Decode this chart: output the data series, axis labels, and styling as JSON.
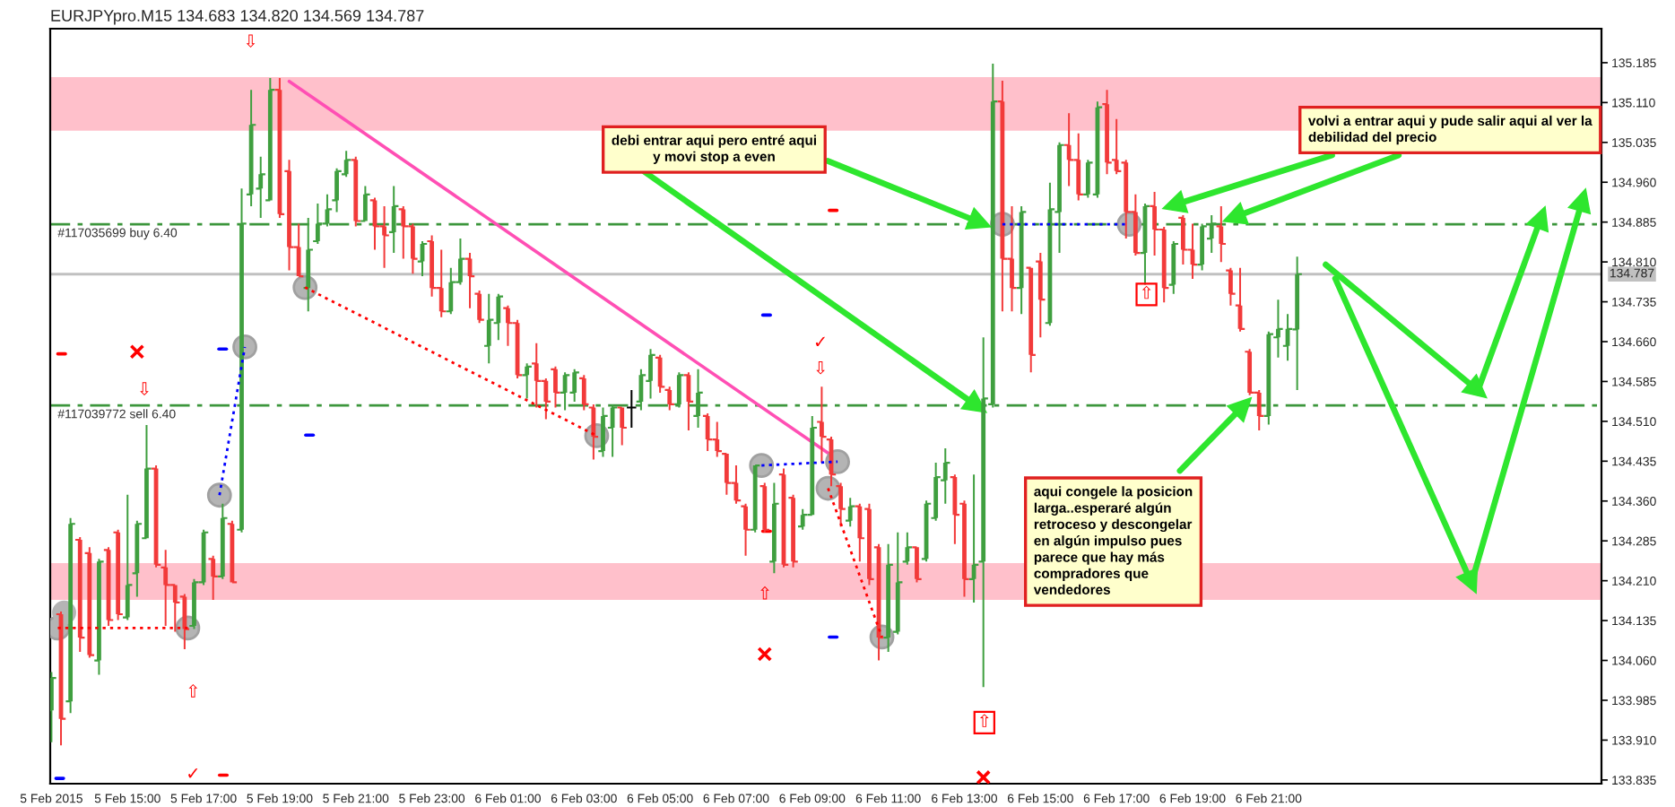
{
  "chart_data": {
    "type": "candlestick",
    "title": "EURJPYpro.M15 134.683 134.820 134.569 134.787",
    "x": [
      "2015-02-05T13:00",
      "2015-02-05T13:15",
      "2015-02-05T13:30",
      "2015-02-05T13:45",
      "2015-02-05T14:00",
      "2015-02-05T14:15",
      "2015-02-05T14:30",
      "2015-02-05T14:45",
      "2015-02-05T15:00",
      "2015-02-05T15:15",
      "2015-02-05T15:30",
      "2015-02-05T15:45",
      "2015-02-05T16:00",
      "2015-02-05T16:15",
      "2015-02-05T16:30",
      "2015-02-05T16:45",
      "2015-02-05T17:00",
      "2015-02-05T17:15",
      "2015-02-05T17:30",
      "2015-02-05T17:45",
      "2015-02-05T18:00",
      "2015-02-05T18:15",
      "2015-02-05T18:30",
      "2015-02-05T18:45",
      "2015-02-05T19:00",
      "2015-02-05T19:15",
      "2015-02-05T19:30",
      "2015-02-05T19:45",
      "2015-02-05T20:00",
      "2015-02-05T20:15",
      "2015-02-05T20:30",
      "2015-02-05T20:45",
      "2015-02-05T21:00",
      "2015-02-05T21:15",
      "2015-02-05T21:30",
      "2015-02-05T21:45",
      "2015-02-05T22:00",
      "2015-02-05T22:15",
      "2015-02-05T22:30",
      "2015-02-05T22:45",
      "2015-02-05T23:00",
      "2015-02-05T23:15",
      "2015-02-05T23:30",
      "2015-02-05T23:45",
      "2015-02-06T00:00",
      "2015-02-06T00:15",
      "2015-02-06T00:30",
      "2015-02-06T00:45",
      "2015-02-06T01:00",
      "2015-02-06T01:15",
      "2015-02-06T01:30",
      "2015-02-06T01:45",
      "2015-02-06T02:00",
      "2015-02-06T02:15",
      "2015-02-06T02:30",
      "2015-02-06T02:45",
      "2015-02-06T03:00",
      "2015-02-06T03:15",
      "2015-02-06T03:30",
      "2015-02-06T03:45",
      "2015-02-06T04:00",
      "2015-02-06T04:15",
      "2015-02-06T04:30",
      "2015-02-06T04:45",
      "2015-02-06T05:00",
      "2015-02-06T05:15",
      "2015-02-06T05:30",
      "2015-02-06T05:45",
      "2015-02-06T06:00",
      "2015-02-06T06:15",
      "2015-02-06T06:30",
      "2015-02-06T06:45",
      "2015-02-06T07:00",
      "2015-02-06T07:15",
      "2015-02-06T07:30",
      "2015-02-06T07:45",
      "2015-02-06T08:00",
      "2015-02-06T08:15",
      "2015-02-06T08:30",
      "2015-02-06T08:45",
      "2015-02-06T09:00",
      "2015-02-06T09:15",
      "2015-02-06T09:30",
      "2015-02-06T09:45",
      "2015-02-06T10:00",
      "2015-02-06T10:15",
      "2015-02-06T10:30",
      "2015-02-06T10:45",
      "2015-02-06T11:00",
      "2015-02-06T11:15",
      "2015-02-06T11:30",
      "2015-02-06T11:45",
      "2015-02-06T12:00",
      "2015-02-06T12:15",
      "2015-02-06T12:30",
      "2015-02-06T12:45",
      "2015-02-06T13:00",
      "2015-02-06T13:15",
      "2015-02-06T13:30",
      "2015-02-06T13:45",
      "2015-02-06T14:00",
      "2015-02-06T14:15",
      "2015-02-06T14:30",
      "2015-02-06T14:45",
      "2015-02-06T15:00",
      "2015-02-06T15:15",
      "2015-02-06T15:30",
      "2015-02-06T15:45",
      "2015-02-06T16:00",
      "2015-02-06T16:15",
      "2015-02-06T16:30",
      "2015-02-06T16:45",
      "2015-02-06T17:00",
      "2015-02-06T17:15",
      "2015-02-06T17:30",
      "2015-02-06T17:45",
      "2015-02-06T18:00",
      "2015-02-06T18:15",
      "2015-02-06T18:30",
      "2015-02-06T18:45",
      "2015-02-06T19:00",
      "2015-02-06T19:15",
      "2015-02-06T19:30",
      "2015-02-06T19:45",
      "2015-02-06T20:00",
      "2015-02-06T20:15",
      "2015-02-06T20:30",
      "2015-02-06T20:45",
      "2015-02-06T21:00",
      "2015-02-06T21:15",
      "2015-02-06T21:30",
      "2015-02-06T21:45"
    ],
    "ohlc": [
      [
        133.966,
        134.038,
        133.906,
        134.027
      ],
      [
        134.147,
        134.152,
        133.9,
        133.95
      ],
      [
        133.983,
        134.328,
        133.961,
        134.317
      ],
      [
        134.287,
        134.292,
        134.076,
        134.103
      ],
      [
        134.262,
        134.273,
        134.065,
        134.07
      ],
      [
        134.06,
        134.251,
        134.033,
        134.246
      ],
      [
        134.268,
        134.273,
        134.125,
        134.136
      ],
      [
        134.301,
        134.306,
        134.136,
        134.147
      ],
      [
        134.141,
        134.372,
        134.136,
        134.202
      ],
      [
        134.224,
        134.323,
        134.18,
        134.317
      ],
      [
        134.29,
        134.503,
        134.29,
        134.421
      ],
      [
        134.421,
        134.427,
        134.235,
        134.24
      ],
      [
        134.235,
        134.268,
        134.125,
        134.202
      ],
      [
        134.202,
        134.202,
        134.114,
        134.169
      ],
      [
        134.18,
        134.185,
        134.081,
        134.119
      ],
      [
        134.125,
        134.213,
        134.119,
        134.207
      ],
      [
        134.207,
        134.306,
        134.202,
        134.301
      ],
      [
        134.251,
        134.257,
        134.174,
        134.218
      ],
      [
        134.218,
        134.355,
        134.213,
        134.328
      ],
      [
        134.317,
        134.323,
        134.207,
        134.207
      ],
      [
        134.306,
        134.948,
        134.301,
        134.882
      ],
      [
        134.937,
        135.134,
        134.915,
        135.068
      ],
      [
        134.948,
        135.008,
        134.893,
        134.975
      ],
      [
        134.926,
        135.156,
        134.926,
        135.134
      ],
      [
        135.134,
        135.156,
        134.893,
        134.9
      ],
      [
        134.981,
        135.002,
        134.794,
        134.838
      ],
      [
        134.838,
        134.882,
        134.783,
        134.783
      ],
      [
        134.761,
        134.893,
        134.717,
        134.833
      ],
      [
        134.849,
        134.92,
        134.844,
        134.882
      ],
      [
        134.882,
        134.937,
        134.877,
        134.909
      ],
      [
        134.926,
        134.986,
        134.904,
        134.981
      ],
      [
        134.975,
        135.019,
        134.97,
        135.002
      ],
      [
        135.002,
        135.008,
        134.877,
        134.887
      ],
      [
        134.887,
        134.953,
        134.887,
        134.937
      ],
      [
        134.926,
        134.931,
        134.833,
        134.877
      ],
      [
        134.877,
        134.915,
        134.799,
        134.86
      ],
      [
        134.866,
        134.953,
        134.827,
        134.915
      ],
      [
        134.909,
        134.915,
        134.816,
        134.877
      ],
      [
        134.877,
        134.882,
        134.788,
        134.816
      ],
      [
        134.811,
        134.849,
        134.783,
        134.844
      ],
      [
        134.849,
        134.86,
        134.745,
        134.761
      ],
      [
        134.761,
        134.833,
        134.706,
        134.717
      ],
      [
        134.717,
        134.799,
        134.712,
        134.772
      ],
      [
        134.772,
        134.854,
        134.767,
        134.816
      ],
      [
        134.816,
        134.827,
        134.723,
        134.783
      ],
      [
        134.75,
        134.756,
        134.695,
        134.701
      ],
      [
        134.652,
        134.75,
        134.619,
        134.701
      ],
      [
        134.695,
        134.75,
        134.663,
        134.745
      ],
      [
        134.723,
        134.728,
        134.652,
        134.695
      ],
      [
        134.695,
        134.701,
        134.591,
        134.597
      ],
      [
        134.597,
        134.619,
        134.553,
        134.613
      ],
      [
        134.619,
        134.657,
        134.536,
        134.586
      ],
      [
        134.586,
        134.591,
        134.514,
        134.547
      ],
      [
        134.608,
        134.613,
        134.536,
        134.564
      ],
      [
        134.564,
        134.602,
        134.531,
        134.597
      ],
      [
        134.564,
        134.608,
        134.547,
        134.602
      ],
      [
        134.591,
        134.597,
        134.531,
        134.542
      ],
      [
        134.536,
        134.542,
        134.438,
        134.481
      ],
      [
        134.454,
        134.536,
        134.443,
        134.52
      ],
      [
        134.498,
        134.542,
        134.443,
        134.536
      ],
      [
        134.536,
        134.536,
        134.465,
        134.498
      ],
      [
        134.536,
        134.569,
        134.498,
        134.536
      ],
      [
        134.547,
        134.608,
        134.531,
        134.597
      ],
      [
        134.586,
        134.646,
        134.553,
        134.635
      ],
      [
        134.63,
        134.635,
        134.564,
        134.575
      ],
      [
        134.569,
        134.575,
        134.531,
        134.542
      ],
      [
        134.542,
        134.602,
        134.536,
        134.597
      ],
      [
        134.597,
        134.602,
        134.493,
        134.547
      ],
      [
        134.52,
        134.608,
        134.498,
        134.564
      ],
      [
        134.52,
        134.525,
        134.454,
        134.476
      ],
      [
        134.476,
        134.509,
        134.443,
        134.454
      ],
      [
        134.449,
        134.449,
        134.372,
        134.394
      ],
      [
        134.394,
        134.427,
        134.355,
        134.361
      ],
      [
        134.35,
        134.355,
        134.257,
        134.306
      ],
      [
        134.306,
        134.427,
        134.301,
        134.427
      ],
      [
        134.388,
        134.394,
        134.301,
        134.306
      ],
      [
        134.246,
        134.394,
        134.224,
        134.355
      ],
      [
        134.41,
        134.421,
        134.235,
        134.24
      ],
      [
        134.366,
        134.372,
        134.235,
        134.246
      ],
      [
        134.312,
        134.345,
        134.306,
        134.334
      ],
      [
        134.334,
        134.52,
        134.334,
        134.498
      ],
      [
        134.509,
        134.575,
        134.432,
        134.481
      ],
      [
        134.476,
        134.481,
        134.388,
        134.41
      ],
      [
        134.388,
        134.394,
        134.312,
        134.345
      ],
      [
        134.323,
        134.366,
        134.312,
        134.35
      ],
      [
        134.35,
        134.355,
        134.246,
        134.29
      ],
      [
        134.345,
        134.355,
        134.202,
        134.213
      ],
      [
        134.273,
        134.279,
        134.06,
        134.103
      ],
      [
        134.103,
        134.279,
        134.076,
        134.24
      ],
      [
        134.114,
        134.301,
        134.109,
        134.207
      ],
      [
        134.246,
        134.301,
        134.24,
        134.273
      ],
      [
        134.273,
        134.273,
        134.207,
        134.213
      ],
      [
        134.251,
        134.361,
        134.246,
        134.355
      ],
      [
        134.328,
        134.432,
        134.323,
        134.405
      ],
      [
        134.399,
        134.459,
        134.355,
        134.432
      ],
      [
        134.405,
        134.41,
        134.279,
        134.334
      ],
      [
        134.355,
        134.361,
        134.18,
        134.213
      ],
      [
        134.213,
        134.41,
        134.169,
        134.24
      ],
      [
        134.246,
        134.668,
        134.01,
        134.553
      ],
      [
        134.542,
        135.183,
        134.536,
        135.112
      ],
      [
        135.112,
        135.151,
        134.717,
        134.816
      ],
      [
        134.816,
        134.915,
        134.717,
        134.761
      ],
      [
        134.761,
        134.915,
        134.712,
        134.904
      ],
      [
        134.799,
        134.799,
        134.602,
        134.635
      ],
      [
        134.811,
        134.827,
        134.668,
        134.739
      ],
      [
        134.695,
        134.959,
        134.69,
        134.909
      ],
      [
        134.904,
        135.035,
        134.827,
        135.03
      ],
      [
        135.03,
        135.09,
        134.953,
        135.002
      ],
      [
        135.002,
        135.052,
        134.926,
        134.937
      ],
      [
        134.937,
        135.002,
        134.931,
        134.997
      ],
      [
        134.937,
        135.112,
        134.931,
        135.101
      ],
      [
        135.107,
        135.134,
        134.975,
        134.997
      ],
      [
        135.002,
        135.079,
        134.975,
        134.981
      ],
      [
        134.997,
        135.002,
        134.854,
        134.904
      ],
      [
        134.904,
        134.937,
        134.822,
        134.827
      ],
      [
        134.827,
        134.92,
        134.767,
        134.915
      ],
      [
        134.915,
        134.942,
        134.822,
        134.871
      ],
      [
        134.871,
        134.876,
        134.734,
        134.761
      ],
      [
        134.767,
        134.849,
        134.75,
        134.844
      ],
      [
        134.893,
        134.898,
        134.805,
        134.833
      ],
      [
        134.833,
        134.882,
        134.778,
        134.805
      ],
      [
        134.805,
        134.882,
        134.794,
        134.877
      ],
      [
        134.854,
        134.898,
        134.827,
        134.882
      ],
      [
        134.877,
        134.915,
        134.81,
        134.844
      ],
      [
        134.794,
        134.799,
        134.728,
        134.75
      ],
      [
        134.728,
        134.799,
        134.679,
        134.684
      ],
      [
        134.641,
        134.646,
        134.559,
        134.564
      ],
      [
        134.564,
        134.569,
        134.493,
        134.52
      ],
      [
        134.52,
        134.679,
        134.504,
        134.674
      ],
      [
        134.668,
        134.739,
        134.63,
        134.684
      ],
      [
        134.652,
        134.712,
        134.624,
        134.684
      ],
      [
        134.683,
        134.82,
        134.569,
        134.787
      ]
    ],
    "colors": [
      "#3f9f3f",
      "#f23a3a",
      "#3f9f3f",
      "#f23a3a",
      "#f23a3a",
      "#3f9f3f",
      "#f23a3a",
      "#f23a3a",
      "#3f9f3f",
      "#3f9f3f",
      "#3f9f3f",
      "#f23a3a",
      "#f23a3a",
      "#f23a3a",
      "#f23a3a",
      "#3f9f3f",
      "#3f9f3f",
      "#f23a3a",
      "#3f9f3f",
      "#f23a3a",
      "#3f9f3f",
      "#3f9f3f",
      "#3f9f3f",
      "#3f9f3f",
      "#f23a3a",
      "#f23a3a",
      "#f23a3a",
      "#3f9f3f",
      "#3f9f3f",
      "#3f9f3f",
      "#3f9f3f",
      "#3f9f3f",
      "#f23a3a",
      "#3f9f3f",
      "#f23a3a",
      "#f23a3a",
      "#3f9f3f",
      "#f23a3a",
      "#f23a3a",
      "#3f9f3f",
      "#f23a3a",
      "#f23a3a",
      "#3f9f3f",
      "#3f9f3f",
      "#f23a3a",
      "#f23a3a",
      "#3f9f3f",
      "#3f9f3f",
      "#f23a3a",
      "#f23a3a",
      "#3f9f3f",
      "#f23a3a",
      "#f23a3a",
      "#f23a3a",
      "#3f9f3f",
      "#3f9f3f",
      "#f23a3a",
      "#f23a3a",
      "#3f9f3f",
      "#3f9f3f",
      "#f23a3a",
      "#000000",
      "#3f9f3f",
      "#3f9f3f",
      "#f23a3a",
      "#f23a3a",
      "#3f9f3f",
      "#f23a3a",
      "#3f9f3f",
      "#f23a3a",
      "#f23a3a",
      "#f23a3a",
      "#f23a3a",
      "#f23a3a",
      "#3f9f3f",
      "#f23a3a",
      "#3f9f3f",
      "#f23a3a",
      "#f23a3a",
      "#3f9f3f",
      "#3f9f3f",
      "#f23a3a",
      "#f23a3a",
      "#f23a3a",
      "#3f9f3f",
      "#f23a3a",
      "#f23a3a",
      "#f23a3a",
      "#3f9f3f",
      "#3f9f3f",
      "#3f9f3f",
      "#f23a3a",
      "#3f9f3f",
      "#3f9f3f",
      "#3f9f3f",
      "#f23a3a",
      "#f23a3a",
      "#3f9f3f",
      "#3f9f3f",
      "#3f9f3f",
      "#f23a3a",
      "#f23a3a",
      "#3f9f3f",
      "#f23a3a",
      "#f23a3a",
      "#3f9f3f",
      "#3f9f3f",
      "#f23a3a",
      "#f23a3a",
      "#3f9f3f",
      "#3f9f3f",
      "#f23a3a",
      "#f23a3a",
      "#f23a3a",
      "#f23a3a",
      "#3f9f3f",
      "#f23a3a",
      "#f23a3a",
      "#3f9f3f",
      "#f23a3a",
      "#f23a3a",
      "#3f9f3f",
      "#3f9f3f",
      "#f23a3a",
      "#f23a3a",
      "#f23a3a",
      "#f23a3a",
      "#f23a3a",
      "#3f9f3f",
      "#3f9f3f",
      "#3f9f3f",
      "#3f9f3f"
    ],
    "series": [
      {
        "type": "line",
        "color": "#ff4fb4",
        "x": [
          "2015-02-05T19:15",
          "2015-02-06T09:40"
        ],
        "values": [
          135.15,
          134.438
        ]
      },
      {
        "type": "line",
        "color": "#ff0000",
        "line_style": "dotted",
        "marker": "circle",
        "x": [
          "2015-02-05T13:10",
          "2015-02-05T16:35"
        ],
        "values": [
          134.121,
          134.121
        ]
      },
      {
        "type": "line",
        "color": "#0000ff",
        "line_style": "dotted",
        "marker": "circle",
        "x": [
          "2015-02-05T17:25",
          "2015-02-05T18:05"
        ],
        "values": [
          134.371,
          134.65
        ]
      },
      {
        "type": "line",
        "color": "#ff0000",
        "line_style": "dotted",
        "marker": "circle",
        "x": [
          "2015-02-05T19:40",
          "2015-02-06T03:20"
        ],
        "values": [
          134.762,
          134.483
        ]
      },
      {
        "type": "line",
        "color": "#0000ff",
        "line_style": "dotted",
        "marker": "circle",
        "x": [
          "2015-02-06T07:40",
          "2015-02-06T09:40"
        ],
        "values": [
          134.427,
          134.434
        ]
      },
      {
        "type": "line",
        "color": "#ff0000",
        "line_style": "dotted",
        "marker": "circle",
        "x": [
          "2015-02-06T09:25",
          "2015-02-06T10:50"
        ],
        "values": [
          134.384,
          134.104
        ]
      },
      {
        "type": "line",
        "color": "#0000ff",
        "line_style": "dotted",
        "marker": "circle",
        "x": [
          "2015-02-06T14:00",
          "2015-02-06T17:20"
        ],
        "values": [
          134.881,
          134.881
        ]
      },
      {
        "type": "scatter",
        "color": "#b4b4b4",
        "marker": "circle",
        "x": [
          "2015-02-05T13:20"
        ],
        "values": [
          134.15
        ]
      },
      {
        "type": "scatter",
        "color": "#ff0000",
        "marker": "cross",
        "x": [
          "2015-02-05T15:15",
          "2015-02-06T07:45",
          "2015-02-06T13:30"
        ],
        "values": [
          134.641,
          134.072,
          133.84
        ]
      },
      {
        "type": "line",
        "color": "#ff0000",
        "x": [
          "2015-02-05T13:10",
          "2015-02-05T13:22"
        ],
        "values": [
          134.637,
          134.637
        ]
      },
      {
        "type": "line",
        "color": "#ff0000",
        "x": [
          "2015-02-05T17:25",
          "2015-02-05T17:37"
        ],
        "values": [
          133.844,
          133.844
        ]
      },
      {
        "type": "line",
        "color": "#ff0000",
        "x": [
          "2015-02-06T07:42",
          "2015-02-06T07:54"
        ],
        "values": [
          134.303,
          134.303
        ]
      },
      {
        "type": "line",
        "color": "#ff0000",
        "x": [
          "2015-02-06T09:27",
          "2015-02-06T09:39"
        ],
        "values": [
          134.907,
          134.907
        ]
      },
      {
        "type": "line",
        "color": "#0000ff",
        "x": [
          "2015-02-05T13:07",
          "2015-02-05T13:19"
        ],
        "values": [
          133.838,
          133.838
        ]
      },
      {
        "type": "line",
        "color": "#0000ff",
        "x": [
          "2015-02-05T17:24",
          "2015-02-05T17:36"
        ],
        "values": [
          134.646,
          134.646
        ]
      },
      {
        "type": "line",
        "color": "#0000ff",
        "x": [
          "2015-02-05T19:41",
          "2015-02-05T19:53"
        ],
        "values": [
          134.484,
          134.484
        ]
      },
      {
        "type": "line",
        "color": "#0000ff",
        "x": [
          "2015-02-06T07:42",
          "2015-02-06T07:54"
        ],
        "values": [
          134.71,
          134.71
        ]
      },
      {
        "type": "line",
        "color": "#0000ff",
        "x": [
          "2015-02-06T09:27",
          "2015-02-06T09:39"
        ],
        "values": [
          134.104,
          134.104
        ]
      },
      {
        "type": "line",
        "color": "#2ee62e",
        "marker": "triangle",
        "x": [
          "2015-02-06T04:35",
          "2015-02-06T13:20"
        ],
        "values": [
          134.98,
          134.539
        ]
      },
      {
        "type": "line",
        "color": "#2ee62e",
        "marker": "triangle",
        "x": [
          "2015-02-06T09:25",
          "2015-02-06T13:25"
        ],
        "values": [
          135.0,
          134.884
        ]
      },
      {
        "type": "line",
        "color": "#2ee62e",
        "marker": "triangle",
        "x": [
          "2015-02-06T22:40",
          "2015-02-06T18:30"
        ],
        "values": [
          135.011,
          134.917
        ]
      },
      {
        "type": "line",
        "color": "#2ee62e",
        "marker": "triangle",
        "x": [
          "2015-02-07T00:25",
          "2015-02-06T20:05"
        ],
        "values": [
          135.011,
          134.894
        ]
      },
      {
        "type": "line",
        "color": "#2ee62e",
        "marker": "triangle",
        "x": [
          "2015-02-06T18:40",
          "2015-02-06T20:20"
        ],
        "values": [
          134.417,
          134.539
        ]
      },
      {
        "type": "line",
        "color": "#2ee62e",
        "marker": "triangle",
        "x": [
          "2015-02-06T22:30",
          "2015-02-07T02:30"
        ],
        "values": [
          134.805,
          134.568
        ]
      },
      {
        "type": "line",
        "color": "#2ee62e",
        "marker": "triangle",
        "x": [
          "2015-02-07T02:30",
          "2015-02-07T04:10"
        ],
        "values": [
          134.568,
          134.894
        ]
      },
      {
        "type": "line",
        "color": "#2ee62e",
        "marker": "triangle",
        "x": [
          "2015-02-06T22:45",
          "2015-02-07T02:20"
        ],
        "values": [
          134.779,
          134.206
        ]
      },
      {
        "type": "line",
        "color": "#2ee62e",
        "marker": "triangle",
        "x": [
          "2015-02-07T02:20",
          "2015-02-07T05:15"
        ],
        "values": [
          134.206,
          134.927
        ]
      }
    ],
    "ref_lines": [
      {
        "axis": "y",
        "value": 134.881,
        "label": "#117035699 buy 6.40",
        "color": "#3c963c",
        "line_style": "dashed"
      },
      {
        "axis": "y",
        "value": 134.54,
        "label": "#117039772 sell 6.40",
        "color": "#3c963c",
        "line_style": "dashed"
      },
      {
        "axis": "y",
        "value": 134.787,
        "label": "134.787",
        "color": "#c0c0c0",
        "line_style": "solid"
      }
    ],
    "bands": [
      {
        "axis": "y",
        "from": 135.057,
        "to": 135.158,
        "color": "#ffc0cb"
      },
      {
        "axis": "y",
        "from": 134.174,
        "to": 134.243,
        "color": "#ffc0cb"
      }
    ],
    "annotations": [
      "debi entrar aqui pero entré aqui\ny movi stop a even",
      "volvi a entrar aqui y pude salir aqui al ver la\ndebilidad del precio",
      "aqui congele la posicion\nlarga..esperaré algún\nretroceso y descongelar\nen algún impulso pues\nparece que hay más\ncompradores que\nvendedores",
      "⇩",
      "⇩",
      "⇧",
      "✓",
      "✓",
      "⇩",
      "⇧",
      "⇧",
      "⇧"
    ],
    "xlim": [
      "2015-02-05T12:58",
      "2015-02-07T05:45"
    ],
    "ylim": [
      133.828,
      135.249
    ],
    "xticks": [
      {
        "value": "2015-02-05T13:00",
        "label": "5 Feb 2015"
      },
      {
        "value": "2015-02-05T15:00",
        "label": "5 Feb 15:00"
      },
      {
        "value": "2015-02-05T17:00",
        "label": "5 Feb 17:00"
      },
      {
        "value": "2015-02-05T19:00",
        "label": "5 Feb 19:00"
      },
      {
        "value": "2015-02-05T21:00",
        "label": "5 Feb 21:00"
      },
      {
        "value": "2015-02-05T23:00",
        "label": "5 Feb 23:00"
      },
      {
        "value": "2015-02-06T01:00",
        "label": "6 Feb 01:00"
      },
      {
        "value": "2015-02-06T03:00",
        "label": "6 Feb 03:00"
      },
      {
        "value": "2015-02-06T05:00",
        "label": "6 Feb 05:00"
      },
      {
        "value": "2015-02-06T07:00",
        "label": "6 Feb 07:00"
      },
      {
        "value": "2015-02-06T09:00",
        "label": "6 Feb 09:00"
      },
      {
        "value": "2015-02-06T11:00",
        "label": "6 Feb 11:00"
      },
      {
        "value": "2015-02-06T13:00",
        "label": "6 Feb 13:00"
      },
      {
        "value": "2015-02-06T15:00",
        "label": "6 Feb 15:00"
      },
      {
        "value": "2015-02-06T17:00",
        "label": "6 Feb 17:00"
      },
      {
        "value": "2015-02-06T19:00",
        "label": "6 Feb 19:00"
      },
      {
        "value": "2015-02-06T21:00",
        "label": "6 Feb 21:00"
      }
    ],
    "yticks": [
      133.835,
      {
        "value": 133.91,
        "label": "133.910"
      },
      133.985,
      {
        "value": 134.06,
        "label": "134.060"
      },
      134.135,
      {
        "value": 134.21,
        "label": "134.210"
      },
      134.285,
      {
        "value": 134.36,
        "label": "134.360"
      },
      134.435,
      {
        "value": 134.51,
        "label": "134.510"
      },
      134.585,
      {
        "value": 134.66,
        "label": "134.660"
      },
      134.735,
      {
        "value": 134.81,
        "label": "134.810"
      },
      134.885,
      {
        "value": 134.96,
        "label": "134.960"
      },
      135.035,
      {
        "value": 135.11,
        "label": "135.110"
      },
      135.185
    ]
  }
}
